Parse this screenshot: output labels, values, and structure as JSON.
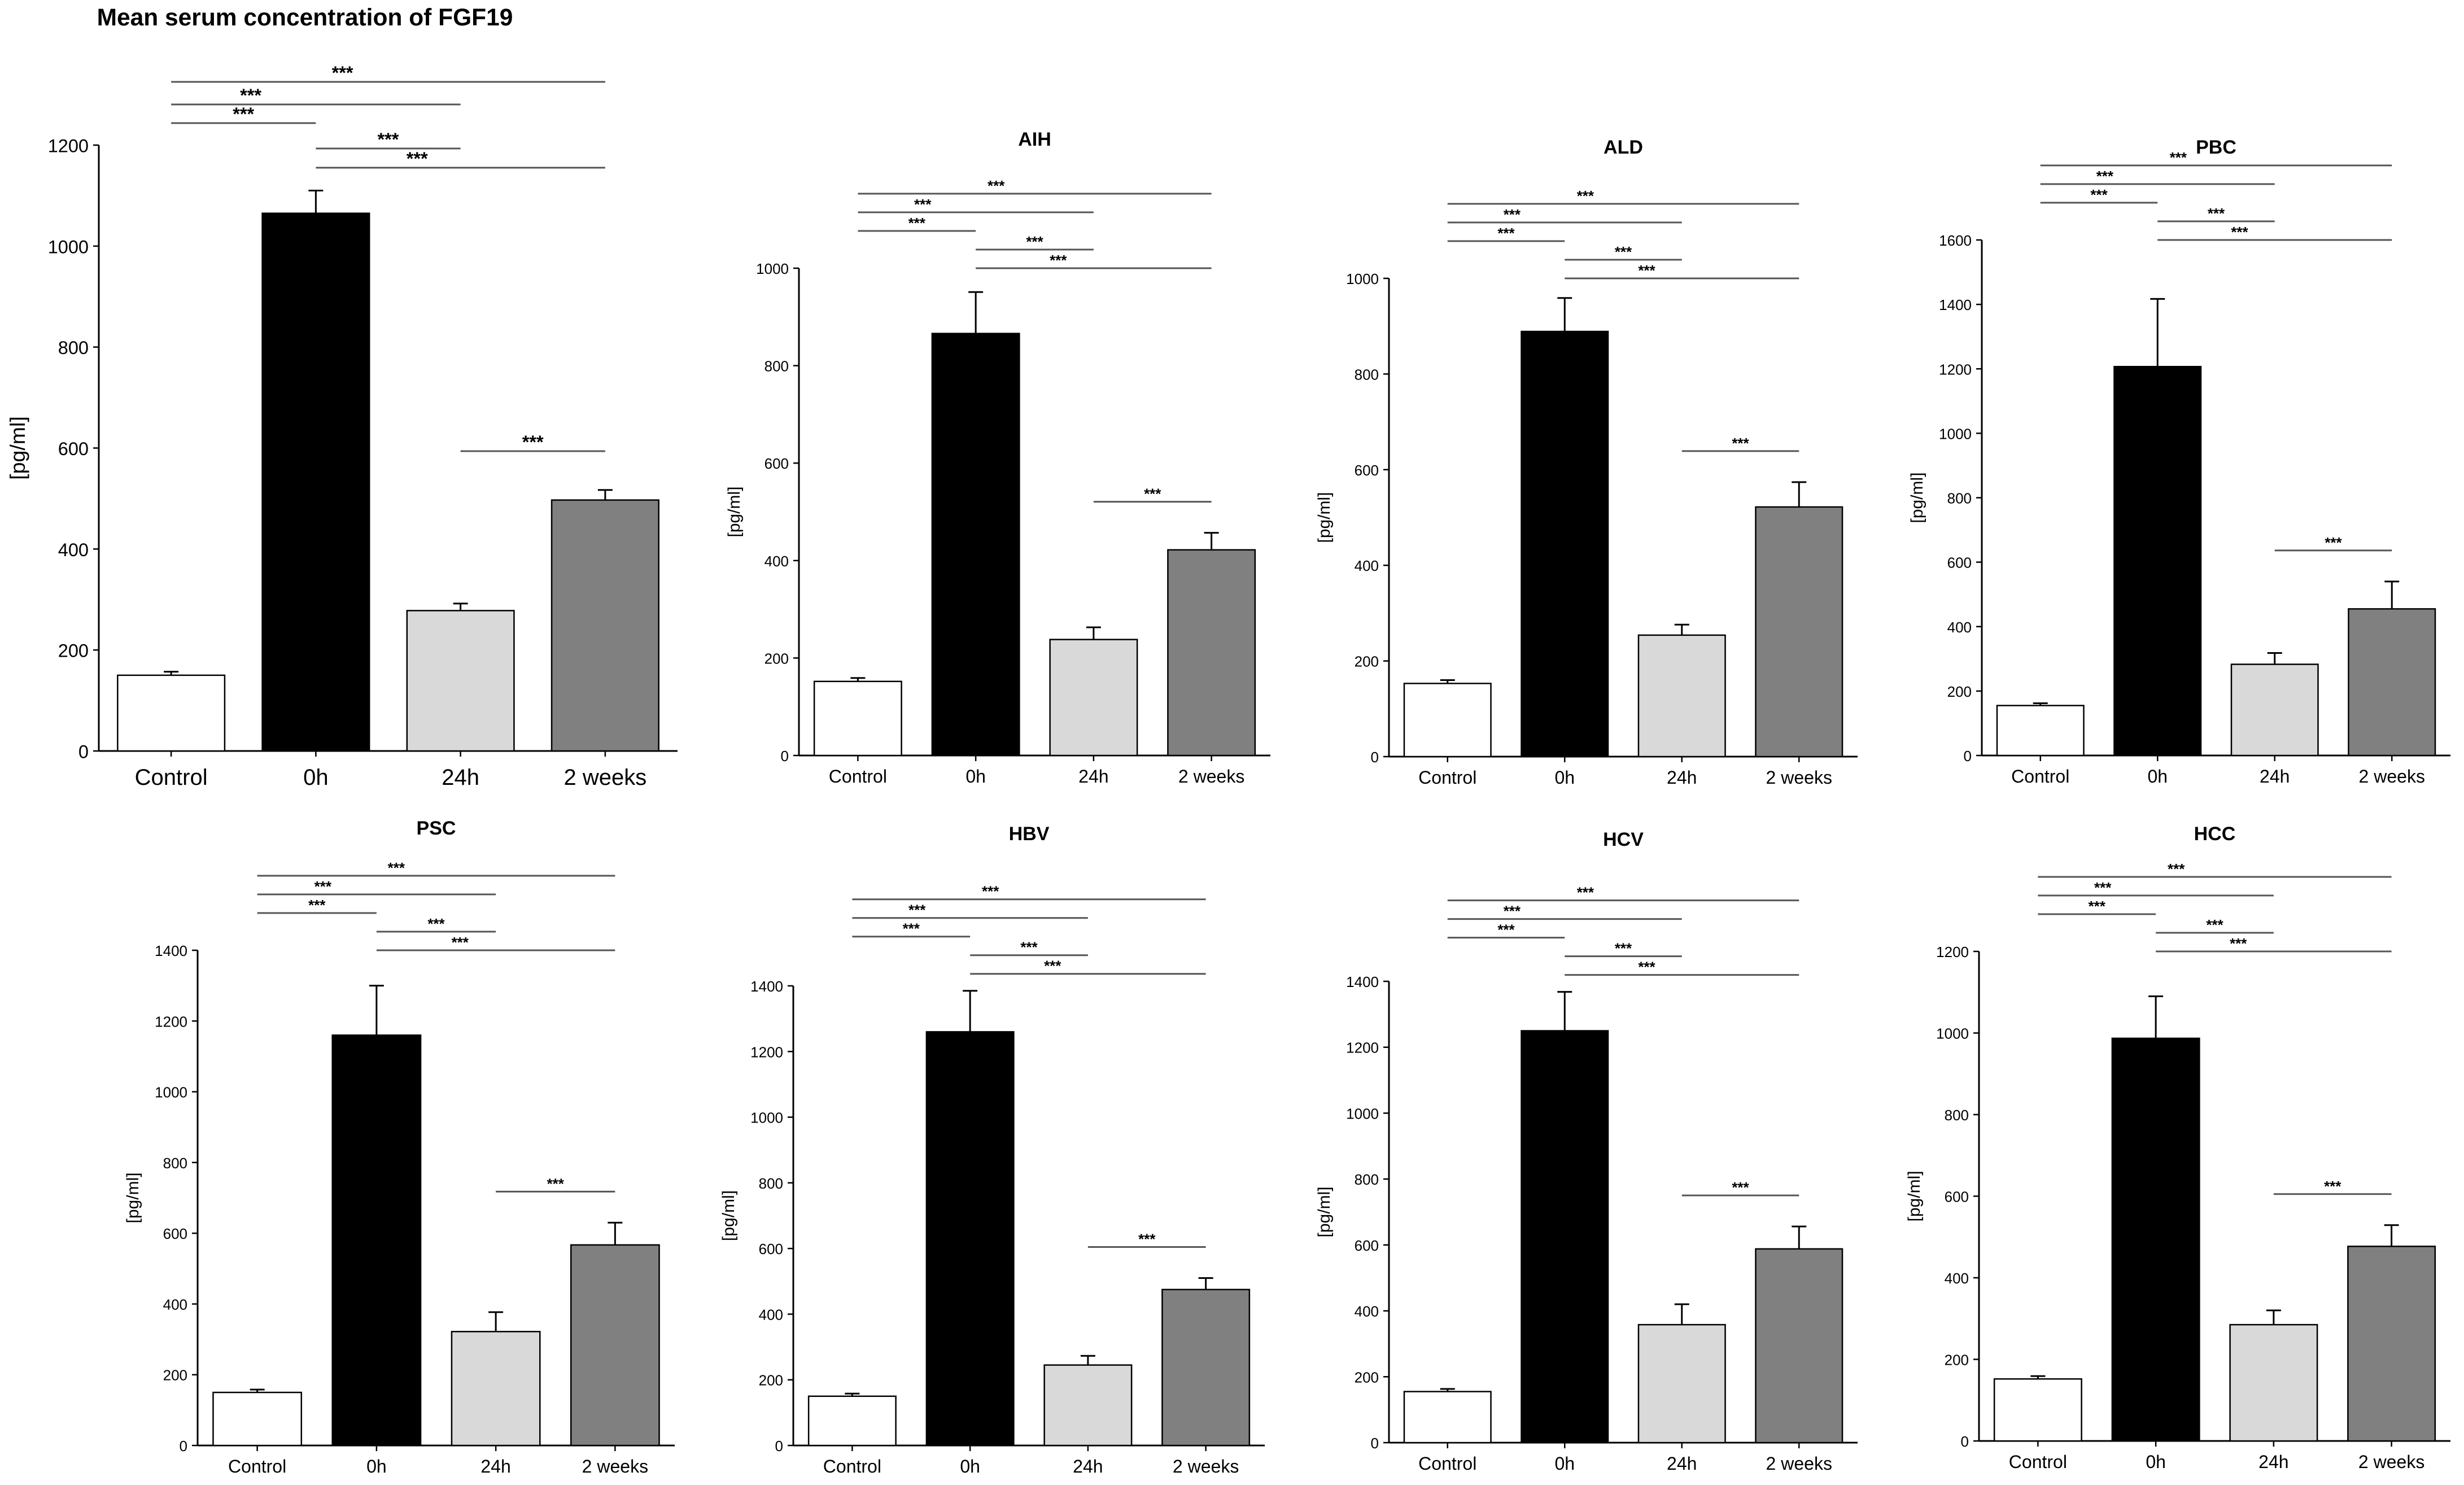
{
  "chart_data": [
    {
      "type": "bar",
      "title": "Mean serum concentration of FGF19",
      "ylabel": "[pg/ml]",
      "ylim": [
        0,
        1200
      ],
      "yticks": [
        0,
        200,
        400,
        600,
        800,
        1000,
        1200
      ],
      "categories": [
        "Control",
        "0h",
        "24h",
        "2 weeks"
      ],
      "values": [
        150,
        1065,
        278,
        497
      ],
      "errors": [
        7,
        45,
        14,
        20
      ],
      "bar_colors": [
        "#ffffff",
        "#000000",
        "#d9d9d9",
        "#808080"
      ],
      "significance": [
        {
          "from": 0,
          "to": 3,
          "label": "***"
        },
        {
          "from": 0,
          "to": 2,
          "label": "***"
        },
        {
          "from": 0,
          "to": 1,
          "label": "***"
        },
        {
          "from": 1,
          "to": 2,
          "label": "***"
        },
        {
          "from": 1,
          "to": 3,
          "label": "***"
        },
        {
          "from": 2,
          "to": 3,
          "label": "***"
        }
      ]
    },
    {
      "type": "bar",
      "title": "AIH",
      "ylabel": "[pg/ml]",
      "ylim": [
        0,
        1000
      ],
      "yticks": [
        0,
        200,
        400,
        600,
        800,
        1000
      ],
      "categories": [
        "Control",
        "0h",
        "24h",
        "2 weeks"
      ],
      "values": [
        152,
        866,
        238,
        422
      ],
      "errors": [
        7,
        85,
        25,
        35
      ],
      "bar_colors": [
        "#ffffff",
        "#000000",
        "#d9d9d9",
        "#808080"
      ],
      "significance": [
        {
          "from": 0,
          "to": 3,
          "label": "***"
        },
        {
          "from": 0,
          "to": 2,
          "label": "***"
        },
        {
          "from": 0,
          "to": 1,
          "label": "***"
        },
        {
          "from": 1,
          "to": 2,
          "label": "***"
        },
        {
          "from": 1,
          "to": 3,
          "label": "***"
        },
        {
          "from": 2,
          "to": 3,
          "label": "***"
        }
      ]
    },
    {
      "type": "bar",
      "title": "ALD",
      "ylabel": "[pg/ml]",
      "ylim": [
        0,
        1000
      ],
      "yticks": [
        0,
        200,
        400,
        600,
        800,
        1000
      ],
      "categories": [
        "Control",
        "0h",
        "24h",
        "2 weeks"
      ],
      "values": [
        153,
        889,
        254,
        522
      ],
      "errors": [
        7,
        70,
        22,
        52
      ],
      "bar_colors": [
        "#ffffff",
        "#000000",
        "#d9d9d9",
        "#808080"
      ],
      "significance": [
        {
          "from": 0,
          "to": 3,
          "label": "***"
        },
        {
          "from": 0,
          "to": 2,
          "label": "***"
        },
        {
          "from": 0,
          "to": 1,
          "label": "***"
        },
        {
          "from": 1,
          "to": 2,
          "label": "***"
        },
        {
          "from": 1,
          "to": 3,
          "label": "***"
        },
        {
          "from": 2,
          "to": 3,
          "label": "***"
        }
      ]
    },
    {
      "type": "bar",
      "title": "PBC",
      "ylabel": "[pg/ml]",
      "ylim": [
        0,
        1600
      ],
      "yticks": [
        0,
        200,
        400,
        600,
        800,
        1000,
        1200,
        1400,
        1600
      ],
      "categories": [
        "Control",
        "0h",
        "24h",
        "2 weeks"
      ],
      "values": [
        155,
        1207,
        283,
        455
      ],
      "errors": [
        7,
        210,
        35,
        85
      ],
      "bar_colors": [
        "#ffffff",
        "#000000",
        "#d9d9d9",
        "#808080"
      ],
      "significance": [
        {
          "from": 0,
          "to": 3,
          "label": "***"
        },
        {
          "from": 0,
          "to": 2,
          "label": "***"
        },
        {
          "from": 0,
          "to": 1,
          "label": "***"
        },
        {
          "from": 1,
          "to": 2,
          "label": "***"
        },
        {
          "from": 1,
          "to": 3,
          "label": "***"
        },
        {
          "from": 2,
          "to": 3,
          "label": "***"
        }
      ]
    },
    {
      "type": "bar",
      "title": "PSC",
      "ylabel": "[pg/ml]",
      "ylim": [
        0,
        1400
      ],
      "yticks": [
        0,
        200,
        400,
        600,
        800,
        1000,
        1200,
        1400
      ],
      "categories": [
        "Control",
        "0h",
        "24h",
        "2 weeks"
      ],
      "values": [
        150,
        1160,
        322,
        567
      ],
      "errors": [
        8,
        140,
        55,
        63
      ],
      "bar_colors": [
        "#ffffff",
        "#000000",
        "#d9d9d9",
        "#808080"
      ],
      "significance": [
        {
          "from": 0,
          "to": 3,
          "label": "***"
        },
        {
          "from": 0,
          "to": 2,
          "label": "***"
        },
        {
          "from": 0,
          "to": 1,
          "label": "***"
        },
        {
          "from": 1,
          "to": 2,
          "label": "***"
        },
        {
          "from": 1,
          "to": 3,
          "label": "***"
        },
        {
          "from": 2,
          "to": 3,
          "label": "***"
        }
      ]
    },
    {
      "type": "bar",
      "title": "HBV",
      "ylabel": "[pg/ml]",
      "ylim": [
        0,
        1400
      ],
      "yticks": [
        0,
        200,
        400,
        600,
        800,
        1000,
        1200,
        1400
      ],
      "categories": [
        "Control",
        "0h",
        "24h",
        "2 weeks"
      ],
      "values": [
        150,
        1260,
        245,
        475
      ],
      "errors": [
        8,
        125,
        28,
        35
      ],
      "bar_colors": [
        "#ffffff",
        "#000000",
        "#d9d9d9",
        "#808080"
      ],
      "significance": [
        {
          "from": 0,
          "to": 3,
          "label": "***"
        },
        {
          "from": 0,
          "to": 2,
          "label": "***"
        },
        {
          "from": 0,
          "to": 1,
          "label": "***"
        },
        {
          "from": 1,
          "to": 2,
          "label": "***"
        },
        {
          "from": 1,
          "to": 3,
          "label": "***"
        },
        {
          "from": 2,
          "to": 3,
          "label": "***"
        }
      ]
    },
    {
      "type": "bar",
      "title": "HCV",
      "ylabel": "[pg/ml]",
      "ylim": [
        0,
        1400
      ],
      "yticks": [
        0,
        200,
        400,
        600,
        800,
        1000,
        1200,
        1400
      ],
      "categories": [
        "Control",
        "0h",
        "24h",
        "2 weeks"
      ],
      "values": [
        155,
        1250,
        358,
        588
      ],
      "errors": [
        8,
        118,
        62,
        68
      ],
      "bar_colors": [
        "#ffffff",
        "#000000",
        "#d9d9d9",
        "#808080"
      ],
      "significance": [
        {
          "from": 0,
          "to": 3,
          "label": "***"
        },
        {
          "from": 0,
          "to": 2,
          "label": "***"
        },
        {
          "from": 0,
          "to": 1,
          "label": "***"
        },
        {
          "from": 1,
          "to": 2,
          "label": "***"
        },
        {
          "from": 1,
          "to": 3,
          "label": "***"
        },
        {
          "from": 2,
          "to": 3,
          "label": "***"
        }
      ]
    },
    {
      "type": "bar",
      "title": "HCC",
      "ylabel": "[pg/ml]",
      "ylim": [
        0,
        1200
      ],
      "yticks": [
        0,
        200,
        400,
        600,
        800,
        1000,
        1200
      ],
      "categories": [
        "Control",
        "0h",
        "24h",
        "2 weeks"
      ],
      "values": [
        152,
        987,
        285,
        477
      ],
      "errors": [
        7,
        103,
        35,
        52
      ],
      "bar_colors": [
        "#ffffff",
        "#000000",
        "#d9d9d9",
        "#808080"
      ],
      "significance": [
        {
          "from": 0,
          "to": 3,
          "label": "***"
        },
        {
          "from": 0,
          "to": 2,
          "label": "***"
        },
        {
          "from": 0,
          "to": 1,
          "label": "***"
        },
        {
          "from": 1,
          "to": 2,
          "label": "***"
        },
        {
          "from": 1,
          "to": 3,
          "label": "***"
        },
        {
          "from": 2,
          "to": 3,
          "label": "***"
        }
      ]
    }
  ]
}
